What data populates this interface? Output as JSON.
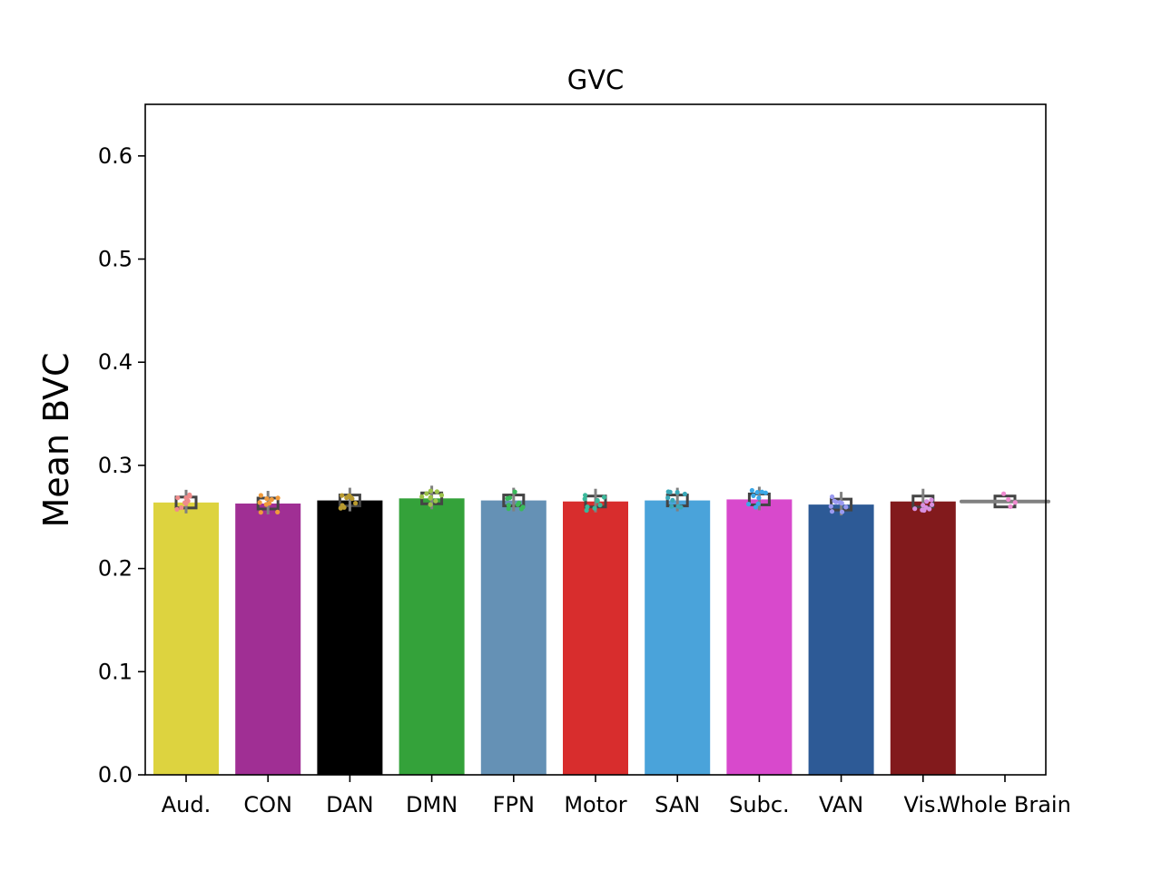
{
  "chart_data": {
    "type": "bar",
    "title": "GVC",
    "xlabel": "",
    "ylabel": "Mean BVC",
    "ylim": [
      0,
      0.65
    ],
    "yticks": [
      "0.0",
      "0.1",
      "0.2",
      "0.3",
      "0.4",
      "0.5",
      "0.6"
    ],
    "categories": [
      "Aud.",
      "CON",
      "DAN",
      "DMN",
      "FPN",
      "Motor",
      "SAN",
      "Subc.",
      "VAN",
      "Vis.",
      "Whole Brain"
    ],
    "values": [
      0.264,
      0.263,
      0.266,
      0.268,
      0.266,
      0.265,
      0.266,
      0.267,
      0.262,
      0.265,
      0.265
    ],
    "colors": [
      "#ddd33f",
      "#a02f94",
      "#000000",
      "#34a23a",
      "#6591b5",
      "#d82d2d",
      "#4aa3da",
      "#d849cc",
      "#2d5a96",
      "#821a1c",
      "#ffffff"
    ],
    "point_colors": [
      "#f08b8b",
      "#f09a3c",
      "#b89a30",
      "#9cc24a",
      "#3aba5a",
      "#3ab89a",
      "#3aa8b8",
      "#3aa8e8",
      "#9a9af0",
      "#d890e0",
      "#f08ad0"
    ],
    "grid": false,
    "legend": "none"
  }
}
